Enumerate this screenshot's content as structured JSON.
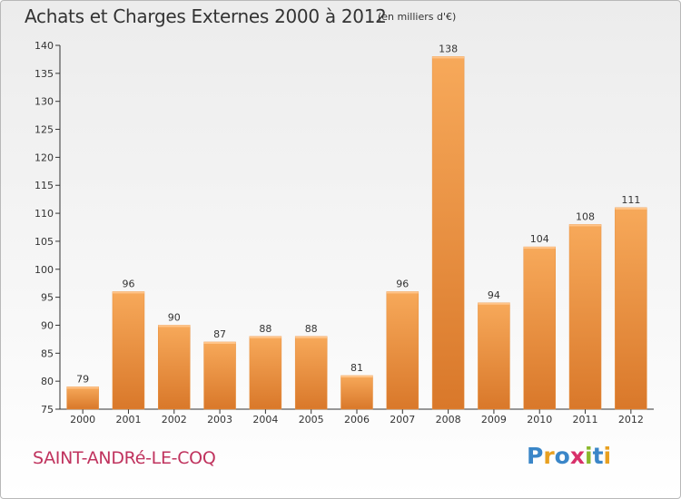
{
  "title": "Achats et Charges Externes 2000 à 2012",
  "unit_note": "(en milliers d'€)",
  "place_name": "SAINT-ANDRé-LE-COQ",
  "logo": {
    "letters": [
      "P",
      "r",
      "o",
      "x",
      "i",
      "t",
      "i"
    ],
    "colors": [
      "#3a86c8",
      "#e8a020",
      "#3a86c8",
      "#d8306a",
      "#8ab82c",
      "#3a86c8",
      "#e8a020"
    ]
  },
  "colors": {
    "bar_light": "#f7a95a",
    "bar_dark": "#d9782a",
    "axis": "#333333",
    "grid": "#dddddd"
  },
  "chart_data": {
    "type": "bar",
    "title": "Achats et Charges Externes 2000 à 2012",
    "categories": [
      "2000",
      "2001",
      "2002",
      "2003",
      "2004",
      "2005",
      "2006",
      "2007",
      "2008",
      "2009",
      "2010",
      "2011",
      "2012"
    ],
    "values": [
      79,
      96,
      90,
      87,
      88,
      88,
      81,
      96,
      138,
      94,
      104,
      108,
      111
    ],
    "ylim": [
      75,
      140
    ],
    "yticks": [
      75,
      80,
      85,
      90,
      95,
      100,
      105,
      110,
      115,
      120,
      125,
      130,
      135,
      140
    ],
    "xlabel": "",
    "ylabel": "",
    "grid": false,
    "legend": "none"
  }
}
